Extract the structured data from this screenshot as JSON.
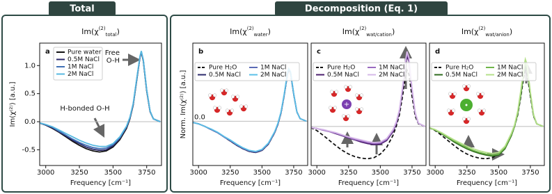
{
  "tabs": [
    "Total",
    "Decomposition (Eq. 1)"
  ],
  "chart_data": [
    {
      "type": "line",
      "panel_label": "a",
      "title": {
        "base": "Im(χ",
        "sup": "(2)",
        "sub": "total",
        "end": ")"
      },
      "x_label": "Frequency [cm⁻¹]",
      "y_label": "Im(χ⁽²⁾) [a.u.]",
      "annotations": [
        "Free\nO-H",
        "H-bonded O-H"
      ],
      "xlim": [
        2955,
        3860
      ],
      "ylim": [
        -0.78,
        1.4
      ],
      "xticks": [
        3000,
        3250,
        3500,
        3750
      ],
      "yticks": [
        -0.5,
        {
          "value": 0,
          "label": "0.0"
        },
        0.5,
        {
          "value": 1,
          "label": "1.0"
        }
      ],
      "legend": "upper left",
      "legend_ncol": 1,
      "zero_line": true,
      "x": [
        2950,
        3000,
        3050,
        3100,
        3150,
        3200,
        3250,
        3300,
        3350,
        3400,
        3450,
        3500,
        3550,
        3600,
        3625,
        3650,
        3675,
        3700,
        3710,
        3725,
        3750,
        3775,
        3800,
        3850
      ],
      "series": [
        {
          "name": "Pure water",
          "color": "#111111",
          "dashed": false,
          "values": [
            -0.02,
            -0.06,
            -0.12,
            -0.19,
            -0.27,
            -0.35,
            -0.42,
            -0.48,
            -0.52,
            -0.54,
            -0.52,
            -0.45,
            -0.32,
            -0.12,
            0.05,
            0.3,
            0.72,
            1.15,
            1.24,
            1.08,
            0.55,
            0.18,
            0.05,
            0.0
          ]
        },
        {
          "name": "0.5M NaCl",
          "color": "#2b2a6b",
          "dashed": false,
          "values": [
            -0.02,
            -0.06,
            -0.11,
            -0.18,
            -0.25,
            -0.33,
            -0.39,
            -0.45,
            -0.49,
            -0.51,
            -0.5,
            -0.43,
            -0.3,
            -0.1,
            0.06,
            0.31,
            0.73,
            1.15,
            1.24,
            1.09,
            0.56,
            0.18,
            0.05,
            0.0
          ]
        },
        {
          "name": "1M NaCl",
          "color": "#3f6fb5",
          "dashed": false,
          "values": [
            -0.02,
            -0.05,
            -0.1,
            -0.17,
            -0.24,
            -0.31,
            -0.37,
            -0.42,
            -0.46,
            -0.48,
            -0.47,
            -0.41,
            -0.29,
            -0.09,
            0.07,
            0.32,
            0.74,
            1.16,
            1.25,
            1.1,
            0.57,
            0.19,
            0.05,
            0.0
          ]
        },
        {
          "name": "2M NaCl",
          "color": "#57b8e0",
          "dashed": false,
          "values": [
            -0.02,
            -0.05,
            -0.09,
            -0.15,
            -0.21,
            -0.27,
            -0.33,
            -0.38,
            -0.42,
            -0.44,
            -0.44,
            -0.39,
            -0.27,
            -0.08,
            0.08,
            0.33,
            0.75,
            1.17,
            1.26,
            1.1,
            0.57,
            0.19,
            0.05,
            0.0
          ]
        }
      ]
    },
    {
      "type": "line",
      "panel_label": "b",
      "title": {
        "base": "Im(χ",
        "sup": "(2)",
        "sub": "water",
        "end": ")"
      },
      "x_label": "Frequency [cm⁻¹]",
      "y_label": "Norm. Im(χ⁽²⁾) [a.u.]",
      "xlim": [
        2955,
        3860
      ],
      "ylim": [
        -0.85,
        1.5
      ],
      "xticks": [
        3000,
        3250,
        3500,
        3750
      ],
      "yticks": [
        {
          "value": 0,
          "label": "0.0"
        }
      ],
      "legend": "upper left",
      "legend_ncol": 2,
      "zero_line": true,
      "x": [
        2950,
        3000,
        3050,
        3100,
        3150,
        3200,
        3250,
        3300,
        3350,
        3400,
        3450,
        3500,
        3550,
        3600,
        3625,
        3650,
        3675,
        3700,
        3710,
        3725,
        3750,
        3775,
        3800,
        3850
      ],
      "series": [
        {
          "name": "Pure H₂O",
          "color": "#111111",
          "dashed": true,
          "values": [
            -0.02,
            -0.05,
            -0.1,
            -0.16,
            -0.22,
            -0.3,
            -0.38,
            -0.46,
            -0.53,
            -0.58,
            -0.6,
            -0.56,
            -0.44,
            -0.22,
            -0.06,
            0.16,
            0.5,
            0.88,
            0.98,
            0.92,
            0.52,
            0.18,
            0.05,
            0.0
          ]
        },
        {
          "name": "0.5M NaCl",
          "color": "#2b2a6b",
          "dashed": false,
          "values": [
            -0.02,
            -0.05,
            -0.1,
            -0.16,
            -0.22,
            -0.3,
            -0.38,
            -0.46,
            -0.53,
            -0.58,
            -0.6,
            -0.56,
            -0.44,
            -0.22,
            -0.06,
            0.16,
            0.5,
            0.89,
            0.99,
            0.93,
            0.52,
            0.18,
            0.05,
            0.0
          ]
        },
        {
          "name": "1M NaCl",
          "color": "#5b6bb5",
          "dashed": false,
          "values": [
            -0.02,
            -0.05,
            -0.1,
            -0.16,
            -0.22,
            -0.3,
            -0.37,
            -0.45,
            -0.52,
            -0.57,
            -0.59,
            -0.55,
            -0.43,
            -0.21,
            -0.05,
            0.17,
            0.51,
            0.9,
            1.0,
            0.94,
            0.53,
            0.18,
            0.05,
            0.0
          ]
        },
        {
          "name": "2M NaCl",
          "color": "#5bc0e8",
          "dashed": false,
          "values": [
            -0.02,
            -0.05,
            -0.1,
            -0.15,
            -0.21,
            -0.29,
            -0.36,
            -0.44,
            -0.51,
            -0.56,
            -0.58,
            -0.54,
            -0.42,
            -0.2,
            -0.04,
            0.18,
            0.52,
            0.91,
            1.01,
            0.95,
            0.53,
            0.18,
            0.05,
            0.0
          ]
        }
      ]
    },
    {
      "type": "line",
      "panel_label": "c",
      "title": {
        "base": "Im(χ",
        "sup": "(2)",
        "sub": "wat/cation",
        "end": ")"
      },
      "x_label": "Frequency [cm⁻¹]",
      "xlim": [
        2955,
        3860
      ],
      "ylim": [
        -0.75,
        1.6
      ],
      "xticks": [
        3000,
        3250,
        3500,
        3750
      ],
      "legend": "upper left",
      "legend_ncol": 2,
      "zero_line": true,
      "x": [
        2950,
        3000,
        3050,
        3100,
        3150,
        3200,
        3250,
        3300,
        3350,
        3400,
        3450,
        3500,
        3550,
        3600,
        3625,
        3650,
        3675,
        3700,
        3710,
        3725,
        3750,
        3775,
        3800,
        3850
      ],
      "series": [
        {
          "name": "Pure H₂O",
          "color": "#111111",
          "dashed": true,
          "values": [
            -0.02,
            -0.08,
            -0.17,
            -0.27,
            -0.37,
            -0.46,
            -0.53,
            -0.58,
            -0.61,
            -0.62,
            -0.6,
            -0.53,
            -0.4,
            -0.17,
            0.0,
            0.22,
            0.58,
            0.98,
            1.08,
            1.0,
            0.58,
            0.2,
            0.05,
            0.0
          ]
        },
        {
          "name": "0.5M NaCl",
          "color": "#4b1e6e",
          "dashed": false,
          "values": [
            -0.02,
            -0.04,
            -0.07,
            -0.1,
            -0.14,
            -0.18,
            -0.22,
            -0.26,
            -0.3,
            -0.33,
            -0.35,
            -0.34,
            -0.27,
            -0.1,
            0.05,
            0.28,
            0.7,
            1.2,
            1.35,
            1.25,
            0.7,
            0.25,
            0.06,
            0.0
          ]
        },
        {
          "name": "1M NaCl",
          "color": "#9a6bc0",
          "dashed": false,
          "values": [
            -0.02,
            -0.04,
            -0.07,
            -0.1,
            -0.13,
            -0.17,
            -0.21,
            -0.25,
            -0.28,
            -0.31,
            -0.33,
            -0.32,
            -0.25,
            -0.08,
            0.07,
            0.3,
            0.73,
            1.25,
            1.4,
            1.3,
            0.72,
            0.26,
            0.06,
            0.0
          ]
        },
        {
          "name": "2M NaCl",
          "color": "#d6b8e8",
          "dashed": false,
          "values": [
            -0.02,
            -0.04,
            -0.06,
            -0.09,
            -0.12,
            -0.16,
            -0.2,
            -0.23,
            -0.26,
            -0.29,
            -0.31,
            -0.3,
            -0.23,
            -0.06,
            0.09,
            0.32,
            0.76,
            1.28,
            1.44,
            1.33,
            0.74,
            0.27,
            0.06,
            0.0
          ]
        }
      ]
    },
    {
      "type": "line",
      "panel_label": "d",
      "title": {
        "base": "Im(χ",
        "sup": "(2)",
        "sub": "wat/anion",
        "end": ")"
      },
      "x_label": "Frequency [cm⁻¹]",
      "xlim": [
        2955,
        3860
      ],
      "ylim": [
        -0.75,
        1.6
      ],
      "xticks": [
        3000,
        3250,
        3500,
        3750
      ],
      "legend": "upper left",
      "legend_ncol": 2,
      "zero_line": true,
      "x": [
        2950,
        3000,
        3050,
        3100,
        3150,
        3200,
        3250,
        3300,
        3350,
        3400,
        3450,
        3500,
        3550,
        3600,
        3625,
        3650,
        3675,
        3700,
        3710,
        3725,
        3750,
        3775,
        3800,
        3850
      ],
      "series": [
        {
          "name": "Pure H₂O",
          "color": "#111111",
          "dashed": true,
          "values": [
            -0.02,
            -0.08,
            -0.17,
            -0.27,
            -0.37,
            -0.46,
            -0.53,
            -0.58,
            -0.61,
            -0.62,
            -0.6,
            -0.53,
            -0.4,
            -0.17,
            0.0,
            0.22,
            0.58,
            0.98,
            1.08,
            1.0,
            0.58,
            0.2,
            0.05,
            0.0
          ]
        },
        {
          "name": "0.5M NaCl",
          "color": "#2f6b1e",
          "dashed": false,
          "values": [
            -0.02,
            -0.07,
            -0.14,
            -0.22,
            -0.3,
            -0.37,
            -0.43,
            -0.48,
            -0.52,
            -0.55,
            -0.57,
            -0.55,
            -0.43,
            -0.18,
            0.0,
            0.24,
            0.62,
            1.05,
            1.16,
            1.08,
            0.62,
            0.21,
            0.05,
            0.0
          ]
        },
        {
          "name": "1M NaCl",
          "color": "#6fb54a",
          "dashed": false,
          "values": [
            -0.02,
            -0.07,
            -0.13,
            -0.21,
            -0.28,
            -0.35,
            -0.41,
            -0.46,
            -0.5,
            -0.53,
            -0.55,
            -0.53,
            -0.41,
            -0.16,
            0.01,
            0.26,
            0.65,
            1.1,
            1.22,
            1.13,
            0.64,
            0.22,
            0.05,
            0.0
          ]
        },
        {
          "name": "2M NaCl",
          "color": "#b5e08a",
          "dashed": false,
          "values": [
            -0.02,
            -0.06,
            -0.12,
            -0.19,
            -0.26,
            -0.32,
            -0.38,
            -0.43,
            -0.47,
            -0.5,
            -0.52,
            -0.5,
            -0.38,
            -0.13,
            0.03,
            0.29,
            0.7,
            1.16,
            1.29,
            1.18,
            0.66,
            0.23,
            0.05,
            0.0
          ]
        }
      ]
    }
  ]
}
